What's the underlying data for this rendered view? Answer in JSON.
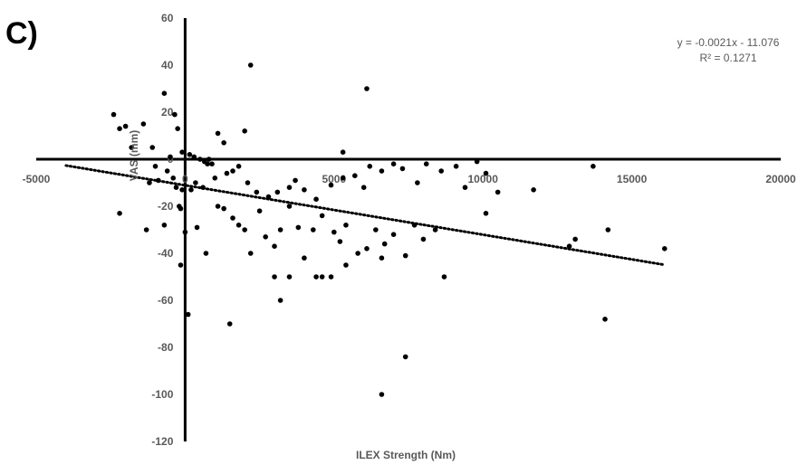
{
  "panel_label": "C)",
  "chart_data": {
    "type": "scatter",
    "xlabel": "ILEX Strength (Nm)",
    "ylabel": "VAS (mm)",
    "xlim": [
      -5000,
      20000
    ],
    "ylim": [
      -120,
      60
    ],
    "x_ticks": [
      -5000,
      0,
      5000,
      10000,
      15000,
      20000
    ],
    "y_ticks": [
      -120,
      -100,
      -80,
      -60,
      -40,
      -20,
      0,
      20,
      40,
      60
    ],
    "grid": false,
    "trendline": {
      "style": "dotted",
      "equation": "y = -0.0021x - 11.076",
      "r_squared": "R² = 0.1271",
      "slope": -0.0021,
      "intercept": -11.076,
      "x_range": [
        -4000,
        16100
      ]
    },
    "point_color": "#000000",
    "points": [
      [
        -2400,
        19
      ],
      [
        -2200,
        13
      ],
      [
        -2000,
        14
      ],
      [
        -1800,
        5
      ],
      [
        -1400,
        15
      ],
      [
        -700,
        28
      ],
      [
        -350,
        19
      ],
      [
        -250,
        13
      ],
      [
        -1100,
        5
      ],
      [
        -500,
        1
      ],
      [
        -100,
        3
      ],
      [
        150,
        2
      ],
      [
        300,
        1
      ],
      [
        500,
        0
      ],
      [
        650,
        -1
      ],
      [
        750,
        -2
      ],
      [
        900,
        -2
      ],
      [
        800,
        0
      ],
      [
        -1000,
        -3
      ],
      [
        -600,
        -5
      ],
      [
        -400,
        -8
      ],
      [
        -1200,
        -10
      ],
      [
        -900,
        -9
      ],
      [
        -300,
        -12
      ],
      [
        -100,
        -13
      ],
      [
        200,
        -13
      ],
      [
        350,
        -10
      ],
      [
        600,
        -12
      ],
      [
        1000,
        -8
      ],
      [
        1400,
        -6
      ],
      [
        1600,
        -5
      ],
      [
        1800,
        -3
      ],
      [
        2100,
        -10
      ],
      [
        2400,
        -14
      ],
      [
        2800,
        -16
      ],
      [
        3100,
        -14
      ],
      [
        3500,
        -12
      ],
      [
        3700,
        -9
      ],
      [
        4000,
        -13
      ],
      [
        4400,
        -17
      ],
      [
        4900,
        -11
      ],
      [
        5300,
        -8
      ],
      [
        5700,
        -7
      ],
      [
        6000,
        -12
      ],
      [
        6200,
        -3
      ],
      [
        6600,
        -5
      ],
      [
        7000,
        -2
      ],
      [
        7300,
        -4
      ],
      [
        7800,
        -10
      ],
      [
        8100,
        -2
      ],
      [
        8600,
        -5
      ],
      [
        9100,
        -3
      ],
      [
        9400,
        -12
      ],
      [
        9800,
        -1
      ],
      [
        10100,
        -6
      ],
      [
        10500,
        -14
      ],
      [
        11700,
        -13
      ],
      [
        13700,
        -3
      ],
      [
        -2200,
        -23
      ],
      [
        -1300,
        -30
      ],
      [
        -700,
        -28
      ],
      [
        -200,
        -20
      ],
      [
        -150,
        -21
      ],
      [
        0,
        -31
      ],
      [
        400,
        -29
      ],
      [
        700,
        -40
      ],
      [
        1100,
        -20
      ],
      [
        1300,
        -21
      ],
      [
        1600,
        -25
      ],
      [
        1800,
        -28
      ],
      [
        2000,
        -30
      ],
      [
        2200,
        -40
      ],
      [
        2500,
        -22
      ],
      [
        2700,
        -33
      ],
      [
        3000,
        -37
      ],
      [
        3200,
        -30
      ],
      [
        3500,
        -20
      ],
      [
        3800,
        -29
      ],
      [
        4000,
        -42
      ],
      [
        4300,
        -30
      ],
      [
        4600,
        -24
      ],
      [
        5000,
        -31
      ],
      [
        5200,
        -35
      ],
      [
        5400,
        -28
      ],
      [
        5800,
        -40
      ],
      [
        6100,
        -38
      ],
      [
        6400,
        -30
      ],
      [
        6700,
        -36
      ],
      [
        7000,
        -32
      ],
      [
        7400,
        -41
      ],
      [
        7700,
        -28
      ],
      [
        8000,
        -34
      ],
      [
        8400,
        -30
      ],
      [
        8700,
        -50
      ],
      [
        10100,
        -23
      ],
      [
        -150,
        -45
      ],
      [
        3000,
        -50
      ],
      [
        3200,
        -60
      ],
      [
        3500,
        -50
      ],
      [
        4400,
        -50
      ],
      [
        4600,
        -50
      ],
      [
        4900,
        -50
      ],
      [
        5400,
        -45
      ],
      [
        6600,
        -42
      ],
      [
        12900,
        -37
      ],
      [
        13100,
        -34
      ],
      [
        14200,
        -30
      ],
      [
        16100,
        -38
      ],
      [
        1500,
        -70
      ],
      [
        100,
        -66
      ],
      [
        14100,
        -68
      ],
      [
        6600,
        -100
      ],
      [
        7400,
        -84
      ],
      [
        1100,
        11
      ],
      [
        2000,
        12
      ],
      [
        5300,
        3
      ],
      [
        6100,
        30
      ],
      [
        2200,
        40
      ],
      [
        1300,
        7
      ]
    ]
  }
}
